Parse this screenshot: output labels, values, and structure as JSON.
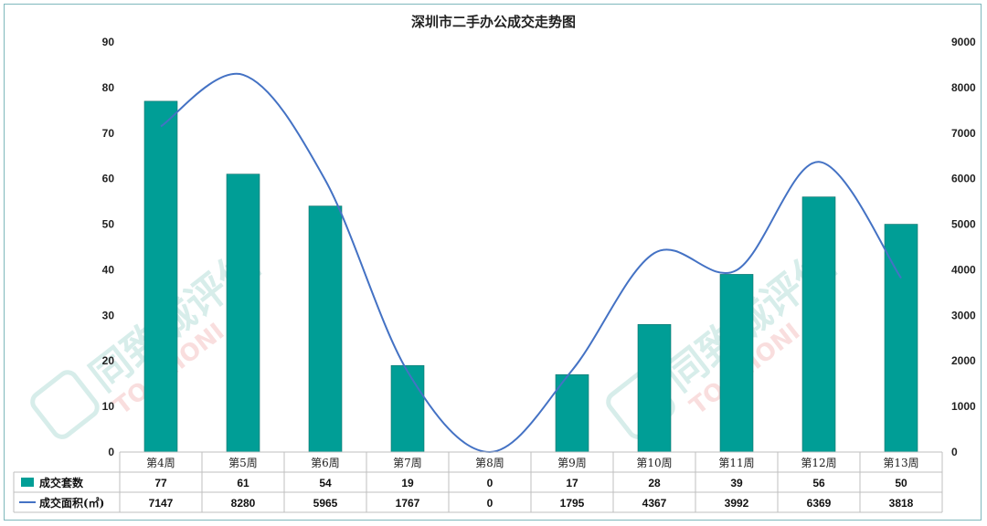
{
  "chart_data": {
    "type": "bar",
    "title": "深圳市二手办公成交走势图",
    "categories": [
      "第4周",
      "第5周",
      "第6周",
      "第7周",
      "第8周",
      "第9周",
      "第10周",
      "第11周",
      "第12周",
      "第13周"
    ],
    "series": [
      {
        "name": "成交套数",
        "type": "bar",
        "axis": "left",
        "color": "#009e96",
        "values": [
          77,
          61,
          54,
          19,
          0,
          17,
          28,
          39,
          56,
          50
        ]
      },
      {
        "name": "成交面积(㎡)",
        "type": "line",
        "axis": "right",
        "color": "#4472c4",
        "values": [
          7147,
          8280,
          5965,
          1767,
          0,
          1795,
          4367,
          3992,
          6369,
          3818
        ]
      }
    ],
    "ylim_left": [
      0,
      90
    ],
    "yticks_left": [
      "0",
      "10",
      "20",
      "30",
      "40",
      "50",
      "60",
      "70",
      "80",
      "90"
    ],
    "ylim_right": [
      0,
      9000
    ],
    "yticks_right": [
      "0",
      "1000",
      "2000",
      "3000",
      "4000",
      "5000",
      "6000",
      "7000",
      "8000",
      "9000"
    ],
    "grid": false,
    "data_table": true,
    "legend_placement": "data-table-left"
  },
  "watermark": {
    "text_cn": "同致诚评估",
    "text_en": "TOCHIONI"
  }
}
